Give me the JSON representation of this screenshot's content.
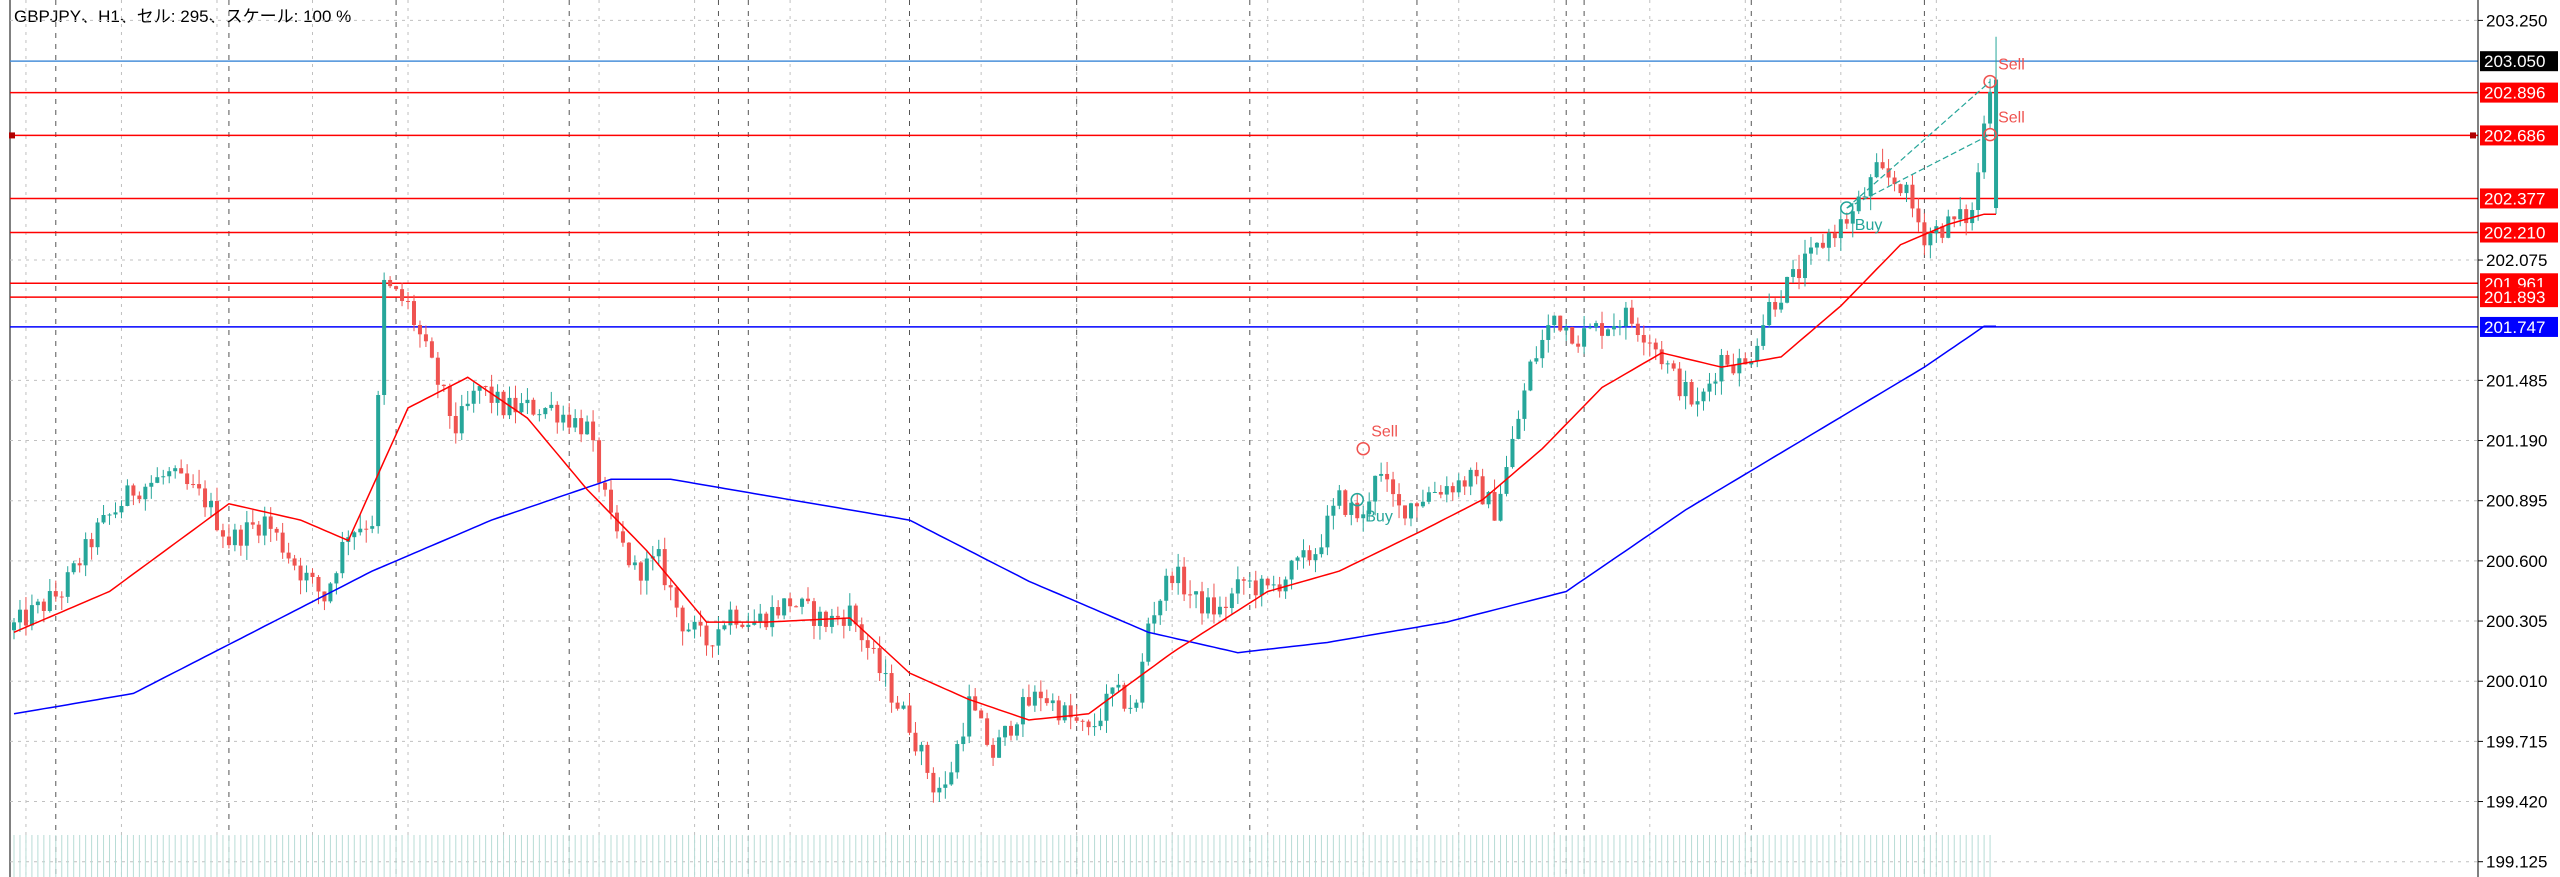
{
  "header": {
    "title": "GBPJPY、H1、セル: 295、スケール: 100 %"
  },
  "chart_data": {
    "type": "candlestick",
    "symbol": "GBPJPY",
    "timeframe": "H1",
    "ylim": [
      199.05,
      203.35
    ],
    "price_ticks": [
      "203.250",
      "202.075",
      "201.485",
      "201.190",
      "200.895",
      "200.600",
      "200.305",
      "200.010",
      "199.715",
      "199.420",
      "199.125"
    ],
    "colors": {
      "up": "#26a69a",
      "down": "#ef5350",
      "ma_fast": "#ff0000",
      "ma_slow": "#0000ff",
      "grid": "#c0c0c0"
    },
    "lines": [
      {
        "price": 203.05,
        "label": "203.050",
        "color": "#4a90d9",
        "tag_color": "#000000"
      },
      {
        "price": 202.896,
        "label": "202.896",
        "color": "#ff0000",
        "tag_color": "#ff0000"
      },
      {
        "price": 202.686,
        "label": "202.686",
        "color": "#ff0000",
        "tag_color": "#ff0000"
      },
      {
        "price": 202.377,
        "label": "202.377",
        "color": "#ff0000",
        "tag_color": "#ff0000"
      },
      {
        "price": 202.21,
        "label": "202.210",
        "color": "#ff0000",
        "tag_color": "#ff0000"
      },
      {
        "price": 201.961,
        "label": "201.961",
        "color": "#ff0000",
        "tag_color": "#ff0000"
      },
      {
        "price": 201.893,
        "label": "201.893",
        "color": "#ff0000",
        "tag_color": "#ff0000"
      },
      {
        "price": 201.747,
        "label": "201.747",
        "color": "#0000ff",
        "tag_color": "#0000ff"
      }
    ],
    "ma_fast_keypoints": [
      [
        0,
        200.25
      ],
      [
        16,
        200.45
      ],
      [
        36,
        200.88
      ],
      [
        48,
        200.8
      ],
      [
        56,
        200.7
      ],
      [
        66,
        201.35
      ],
      [
        76,
        201.5
      ],
      [
        86,
        201.3
      ],
      [
        96,
        200.95
      ],
      [
        106,
        200.65
      ],
      [
        116,
        200.3
      ],
      [
        126,
        200.3
      ],
      [
        140,
        200.32
      ],
      [
        150,
        200.05
      ],
      [
        160,
        199.92
      ],
      [
        170,
        199.82
      ],
      [
        180,
        199.85
      ],
      [
        194,
        200.15
      ],
      [
        210,
        200.45
      ],
      [
        222,
        200.55
      ],
      [
        236,
        200.75
      ],
      [
        246,
        200.9
      ],
      [
        256,
        201.15
      ],
      [
        266,
        201.45
      ],
      [
        276,
        201.62
      ],
      [
        286,
        201.55
      ],
      [
        296,
        201.6
      ],
      [
        306,
        201.85
      ],
      [
        316,
        202.15
      ],
      [
        324,
        202.25
      ],
      [
        330,
        202.3
      ]
    ],
    "ma_slow_keypoints": [
      [
        0,
        199.85
      ],
      [
        20,
        199.95
      ],
      [
        40,
        200.25
      ],
      [
        60,
        200.55
      ],
      [
        80,
        200.8
      ],
      [
        100,
        201.0
      ],
      [
        110,
        201.0
      ],
      [
        130,
        200.9
      ],
      [
        150,
        200.8
      ],
      [
        170,
        200.5
      ],
      [
        190,
        200.25
      ],
      [
        205,
        200.15
      ],
      [
        220,
        200.2
      ],
      [
        240,
        200.3
      ],
      [
        260,
        200.45
      ],
      [
        280,
        200.85
      ],
      [
        300,
        201.2
      ],
      [
        320,
        201.55
      ],
      [
        330,
        201.75
      ]
    ],
    "close_keypoints": [
      [
        0,
        200.28
      ],
      [
        8,
        200.45
      ],
      [
        14,
        200.75
      ],
      [
        20,
        200.95
      ],
      [
        26,
        201.02
      ],
      [
        32,
        200.9
      ],
      [
        36,
        200.7
      ],
      [
        42,
        200.8
      ],
      [
        48,
        200.55
      ],
      [
        52,
        200.42
      ],
      [
        56,
        200.75
      ],
      [
        60,
        200.8
      ],
      [
        62,
        201.95
      ],
      [
        66,
        201.85
      ],
      [
        70,
        201.55
      ],
      [
        74,
        201.25
      ],
      [
        78,
        201.45
      ],
      [
        82,
        201.35
      ],
      [
        90,
        201.35
      ],
      [
        96,
        201.25
      ],
      [
        100,
        200.78
      ],
      [
        104,
        200.55
      ],
      [
        108,
        200.6
      ],
      [
        112,
        200.3
      ],
      [
        116,
        200.2
      ],
      [
        120,
        200.35
      ],
      [
        124,
        200.3
      ],
      [
        130,
        200.4
      ],
      [
        136,
        200.3
      ],
      [
        140,
        200.35
      ],
      [
        146,
        200.0
      ],
      [
        150,
        199.8
      ],
      [
        154,
        199.5
      ],
      [
        156,
        199.48
      ],
      [
        160,
        199.9
      ],
      [
        164,
        199.65
      ],
      [
        168,
        199.85
      ],
      [
        172,
        199.95
      ],
      [
        176,
        199.85
      ],
      [
        180,
        199.75
      ],
      [
        184,
        199.95
      ],
      [
        188,
        199.88
      ],
      [
        190,
        200.3
      ],
      [
        194,
        200.55
      ],
      [
        198,
        200.4
      ],
      [
        202,
        200.35
      ],
      [
        206,
        200.5
      ],
      [
        210,
        200.45
      ],
      [
        214,
        200.55
      ],
      [
        218,
        200.65
      ],
      [
        222,
        200.9
      ],
      [
        226,
        200.8
      ],
      [
        228,
        201.05
      ],
      [
        232,
        200.85
      ],
      [
        238,
        200.95
      ],
      [
        244,
        201.0
      ],
      [
        248,
        200.85
      ],
      [
        250,
        201.05
      ],
      [
        254,
        201.55
      ],
      [
        258,
        201.8
      ],
      [
        262,
        201.7
      ],
      [
        266,
        201.75
      ],
      [
        270,
        201.8
      ],
      [
        274,
        201.7
      ],
      [
        278,
        201.5
      ],
      [
        282,
        201.35
      ],
      [
        286,
        201.6
      ],
      [
        290,
        201.55
      ],
      [
        294,
        201.85
      ],
      [
        300,
        202.05
      ],
      [
        304,
        202.2
      ],
      [
        308,
        202.3
      ],
      [
        312,
        202.5
      ],
      [
        316,
        202.45
      ],
      [
        320,
        202.2
      ],
      [
        324,
        202.25
      ],
      [
        328,
        202.3
      ],
      [
        331,
        202.95
      ]
    ],
    "trades": [
      {
        "type": "Sell",
        "label": "Sell",
        "idx": 226,
        "price": 201.15,
        "text_color": "#ef5350"
      },
      {
        "type": "Buy",
        "label": "Buy",
        "idx": 225,
        "price": 200.9,
        "text_color": "#26a69a"
      },
      {
        "type": "Buy",
        "label": "Buy",
        "idx": 307,
        "price": 202.33,
        "text_color": "#26a69a"
      },
      {
        "type": "Sell",
        "label": "Sell",
        "idx": 331,
        "price": 202.95,
        "text_color": "#ef5350"
      },
      {
        "type": "Sell",
        "label": "Sell",
        "idx": 331,
        "price": 202.69,
        "text_color": "#ef5350"
      }
    ]
  }
}
